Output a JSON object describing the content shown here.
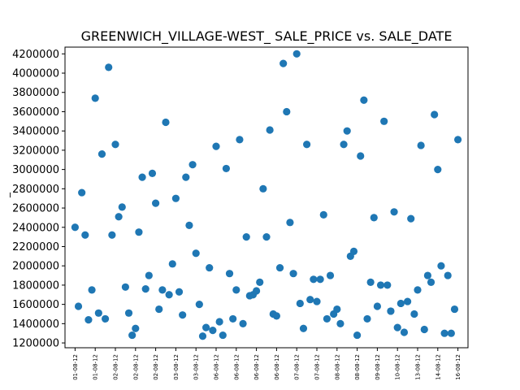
{
  "chart_data": {
    "type": "scatter",
    "title": "GREENWICH_VILLAGE-WEST_ SALE_PRICE vs. SALE_DATE",
    "xlabel": "",
    "ylabel": "_",
    "marker_color": "#1f77b4",
    "grid": false,
    "legend": "none",
    "ylim": [
      1150000,
      4270000
    ],
    "yticks": [
      1200000,
      1400000,
      1600000,
      1800000,
      2000000,
      2200000,
      2400000,
      2600000,
      2800000,
      3000000,
      3200000,
      3400000,
      3600000,
      3800000,
      4000000,
      4200000
    ],
    "xtick_labels": [
      "01-08-12",
      "01-08-12",
      "02-08-12",
      "02-08-12",
      "02-08-12",
      "03-08-12",
      "03-08-12",
      "06-08-12",
      "06-08-12",
      "06-08-12",
      "06-08-12",
      "07-08-12",
      "07-08-12",
      "08-08-12",
      "08-08-12",
      "09-08-12",
      "10-08-12",
      "13-08-12",
      "14-08-12",
      "16-08-12"
    ],
    "xtick_index": [
      0,
      6,
      12,
      18,
      24,
      30,
      36,
      42,
      48,
      54,
      60,
      66,
      72,
      78,
      84,
      90,
      96,
      102,
      108,
      114
    ],
    "x_index_range": [
      -3,
      117
    ],
    "points": [
      [
        0,
        2400000
      ],
      [
        1,
        1580000
      ],
      [
        2,
        2760000
      ],
      [
        3,
        2320000
      ],
      [
        4,
        1440000
      ],
      [
        5,
        1750000
      ],
      [
        6,
        3740000
      ],
      [
        7,
        1510000
      ],
      [
        8,
        3160000
      ],
      [
        9,
        1450000
      ],
      [
        10,
        4060000
      ],
      [
        11,
        2320000
      ],
      [
        12,
        3260000
      ],
      [
        13,
        2510000
      ],
      [
        14,
        2610000
      ],
      [
        15,
        1780000
      ],
      [
        16,
        1510000
      ],
      [
        17,
        1280000
      ],
      [
        18,
        1350000
      ],
      [
        19,
        2350000
      ],
      [
        20,
        2920000
      ],
      [
        21,
        1760000
      ],
      [
        22,
        1900000
      ],
      [
        23,
        2960000
      ],
      [
        24,
        2650000
      ],
      [
        25,
        1550000
      ],
      [
        26,
        1750000
      ],
      [
        27,
        3490000
      ],
      [
        28,
        1700000
      ],
      [
        29,
        2020000
      ],
      [
        30,
        2700000
      ],
      [
        31,
        1730000
      ],
      [
        32,
        1490000
      ],
      [
        33,
        2920000
      ],
      [
        34,
        2420000
      ],
      [
        35,
        3050000
      ],
      [
        36,
        2130000
      ],
      [
        37,
        1600000
      ],
      [
        38,
        1270000
      ],
      [
        39,
        1360000
      ],
      [
        40,
        1980000
      ],
      [
        41,
        1330000
      ],
      [
        42,
        3240000
      ],
      [
        43,
        1420000
      ],
      [
        44,
        1280000
      ],
      [
        45,
        3010000
      ],
      [
        46,
        1920000
      ],
      [
        47,
        1450000
      ],
      [
        48,
        1750000
      ],
      [
        49,
        3310000
      ],
      [
        50,
        1400000
      ],
      [
        51,
        2300000
      ],
      [
        52,
        1690000
      ],
      [
        53,
        1700000
      ],
      [
        54,
        1740000
      ],
      [
        55,
        1830000
      ],
      [
        56,
        2800000
      ],
      [
        57,
        2300000
      ],
      [
        58,
        3410000
      ],
      [
        59,
        1500000
      ],
      [
        60,
        1480000
      ],
      [
        61,
        1980000
      ],
      [
        62,
        4100000
      ],
      [
        63,
        3600000
      ],
      [
        64,
        2450000
      ],
      [
        65,
        1920000
      ],
      [
        66,
        4200000
      ],
      [
        67,
        1610000
      ],
      [
        68,
        1350000
      ],
      [
        69,
        3260000
      ],
      [
        70,
        1650000
      ],
      [
        71,
        1860000
      ],
      [
        72,
        1630000
      ],
      [
        73,
        1860000
      ],
      [
        74,
        2530000
      ],
      [
        75,
        1450000
      ],
      [
        76,
        1900000
      ],
      [
        77,
        1500000
      ],
      [
        78,
        1550000
      ],
      [
        79,
        1400000
      ],
      [
        80,
        3260000
      ],
      [
        81,
        3400000
      ],
      [
        82,
        2100000
      ],
      [
        83,
        2150000
      ],
      [
        84,
        1280000
      ],
      [
        85,
        3140000
      ],
      [
        86,
        3720000
      ],
      [
        87,
        1450000
      ],
      [
        88,
        1830000
      ],
      [
        89,
        2500000
      ],
      [
        90,
        1580000
      ],
      [
        91,
        1800000
      ],
      [
        92,
        3500000
      ],
      [
        93,
        1800000
      ],
      [
        94,
        1530000
      ],
      [
        95,
        2560000
      ],
      [
        96,
        1360000
      ],
      [
        97,
        1610000
      ],
      [
        98,
        1310000
      ],
      [
        99,
        1630000
      ],
      [
        100,
        2490000
      ],
      [
        101,
        1500000
      ],
      [
        102,
        1750000
      ],
      [
        103,
        3250000
      ],
      [
        104,
        1340000
      ],
      [
        105,
        1900000
      ],
      [
        106,
        1830000
      ],
      [
        107,
        3570000
      ],
      [
        108,
        3000000
      ],
      [
        109,
        2000000
      ],
      [
        110,
        1300000
      ],
      [
        111,
        1900000
      ],
      [
        112,
        1300000
      ],
      [
        113,
        1550000
      ],
      [
        114,
        3310000
      ]
    ]
  }
}
